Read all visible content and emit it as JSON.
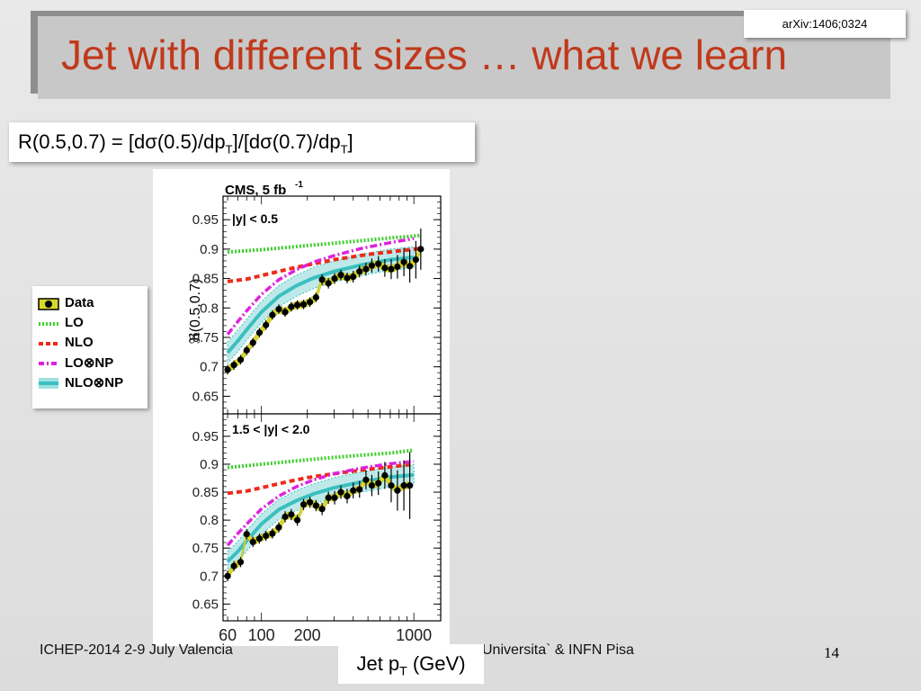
{
  "slide": {
    "title": "Jet with different sizes … what we learn",
    "reference": "arXiv:1406;0324",
    "formula": {
      "part1": "R(0.5,0.7) = [dσ(0.5)/dp",
      "sub1": "T",
      "part2": "]/[dσ(0.7)/dp",
      "sub2": "T",
      "part3": "]"
    },
    "footer_left": "ICHEP-2014 2-9 July Valencia",
    "footer_right": "Universita` & INFN Pisa",
    "page_number": "14"
  },
  "legend": [
    {
      "label": "Data",
      "icon": "data-marker-icon"
    },
    {
      "label": "LO",
      "icon": "green-dotted-line-icon"
    },
    {
      "label": "NLO",
      "icon": "red-dashed-line-icon"
    },
    {
      "label": "LO⊗NP",
      "icon": "magenta-dashdot-line-icon"
    },
    {
      "label": "NLO⊗NP",
      "icon": "cyan-band-icon"
    }
  ],
  "colors": {
    "title": "#c0391b",
    "lo": "#3ccf2a",
    "nlo": "#ee2a1a",
    "lonp": "#dd22dd",
    "nlonp": "#3bbfc0",
    "data_band": "#d8d82a"
  },
  "chart_data": {
    "type": "line",
    "experiment_label": "CMS, 5 fb",
    "experiment_label_sup": "-1",
    "ylabel": "ℜ(0.5,0.7)",
    "xlabel": "Jet p",
    "xlabel_sub": "T",
    "xlabel_unit": "(GeV)",
    "xscale": "log",
    "xlim": [
      56,
      1500
    ],
    "ylim": [
      0.62,
      0.99
    ],
    "x_tick_labels": [
      {
        "x": 60,
        "label": "60"
      },
      {
        "x": 100,
        "label": "100"
      },
      {
        "x": 200,
        "label": "200"
      },
      {
        "x": 1000,
        "label": "1000"
      }
    ],
    "y_ticks": [
      0.65,
      0.7,
      0.75,
      0.8,
      0.85,
      0.9,
      0.95
    ],
    "y_tick_labels": [
      "0.65",
      "0.7",
      "0.75",
      "0.8",
      "0.85",
      "0.9",
      "0.95"
    ],
    "panels": [
      {
        "label": "|y| < 0.5",
        "series": {
          "lo": {
            "x": [
              60,
              100,
              200,
              400,
              700,
              1100
            ],
            "y": [
              0.895,
              0.899,
              0.906,
              0.913,
              0.919,
              0.923
            ]
          },
          "nlo": {
            "x": [
              60,
              80,
              100,
              150,
              200,
              300,
              500,
              800,
              1100
            ],
            "y": [
              0.845,
              0.849,
              0.855,
              0.866,
              0.873,
              0.882,
              0.891,
              0.897,
              0.901
            ]
          },
          "lonp": {
            "x": [
              60,
              70,
              80,
              100,
              130,
              170,
              220,
              300,
              450,
              700,
              1000
            ],
            "y": [
              0.755,
              0.777,
              0.795,
              0.823,
              0.848,
              0.865,
              0.878,
              0.889,
              0.901,
              0.911,
              0.918
            ]
          },
          "nlonp": {
            "x": [
              60,
              70,
              80,
              100,
              130,
              170,
              220,
              300,
              450,
              700,
              1000
            ],
            "y": [
              0.724,
              0.744,
              0.763,
              0.793,
              0.82,
              0.838,
              0.851,
              0.862,
              0.873,
              0.882,
              0.886
            ],
            "halfwidth": 0.018
          },
          "data": {
            "x": [
              60,
              66,
              73,
              80,
              88,
              97,
              107,
              118,
              130,
              143,
              157,
              172,
              189,
              208,
              228,
              250,
              275,
              302,
              332,
              365,
              400,
              440,
              485,
              530,
              585,
              645,
              710,
              780,
              860,
              940,
              1030,
              1110
            ],
            "y": [
              0.695,
              0.703,
              0.712,
              0.728,
              0.741,
              0.758,
              0.771,
              0.788,
              0.798,
              0.793,
              0.802,
              0.805,
              0.806,
              0.81,
              0.818,
              0.848,
              0.842,
              0.85,
              0.856,
              0.851,
              0.853,
              0.862,
              0.866,
              0.872,
              0.875,
              0.868,
              0.866,
              0.87,
              0.878,
              0.871,
              0.882,
              0.9
            ],
            "err": [
              0.008,
              0.008,
              0.008,
              0.008,
              0.008,
              0.008,
              0.008,
              0.008,
              0.008,
              0.008,
              0.008,
              0.008,
              0.008,
              0.008,
              0.008,
              0.009,
              0.009,
              0.009,
              0.009,
              0.009,
              0.01,
              0.01,
              0.011,
              0.012,
              0.013,
              0.015,
              0.017,
              0.02,
              0.024,
              0.028,
              0.032,
              0.035
            ]
          }
        }
      },
      {
        "label": "1.5 < |y| < 2.0",
        "series": {
          "lo": {
            "x": [
              60,
              100,
              200,
              400,
              700,
              1000
            ],
            "y": [
              0.894,
              0.9,
              0.908,
              0.915,
              0.92,
              0.925
            ]
          },
          "nlo": {
            "x": [
              60,
              80,
              100,
              150,
              200,
              300,
              500,
              800,
              1000
            ],
            "y": [
              0.848,
              0.852,
              0.858,
              0.869,
              0.876,
              0.883,
              0.891,
              0.897,
              0.9
            ]
          },
          "lonp": {
            "x": [
              60,
              70,
              80,
              100,
              130,
              170,
              220,
              300,
              450,
              700,
              1000
            ],
            "y": [
              0.755,
              0.776,
              0.793,
              0.82,
              0.843,
              0.86,
              0.872,
              0.883,
              0.893,
              0.901,
              0.905
            ]
          },
          "nlonp": {
            "x": [
              60,
              70,
              80,
              100,
              130,
              170,
              220,
              300,
              450,
              700,
              1000
            ],
            "y": [
              0.726,
              0.744,
              0.763,
              0.793,
              0.819,
              0.835,
              0.847,
              0.858,
              0.868,
              0.877,
              0.881
            ],
            "halfwidth": 0.018
          },
          "data": {
            "x": [
              60,
              66,
              73,
              80,
              88,
              97,
              107,
              118,
              130,
              143,
              157,
              172,
              189,
              208,
              228,
              250,
              275,
              302,
              332,
              365,
              400,
              440,
              485,
              530,
              585,
              645,
              710,
              780,
              860,
              940
            ],
            "y": [
              0.7,
              0.718,
              0.725,
              0.775,
              0.761,
              0.767,
              0.772,
              0.776,
              0.787,
              0.806,
              0.81,
              0.8,
              0.828,
              0.832,
              0.826,
              0.82,
              0.84,
              0.84,
              0.85,
              0.843,
              0.853,
              0.855,
              0.872,
              0.862,
              0.866,
              0.88,
              0.862,
              0.853,
              0.862,
              0.862
            ],
            "err": [
              0.009,
              0.009,
              0.009,
              0.009,
              0.009,
              0.009,
              0.009,
              0.009,
              0.009,
              0.01,
              0.01,
              0.01,
              0.01,
              0.01,
              0.01,
              0.011,
              0.011,
              0.012,
              0.012,
              0.013,
              0.014,
              0.015,
              0.017,
              0.019,
              0.021,
              0.024,
              0.03,
              0.036,
              0.045,
              0.06
            ]
          }
        }
      }
    ]
  }
}
